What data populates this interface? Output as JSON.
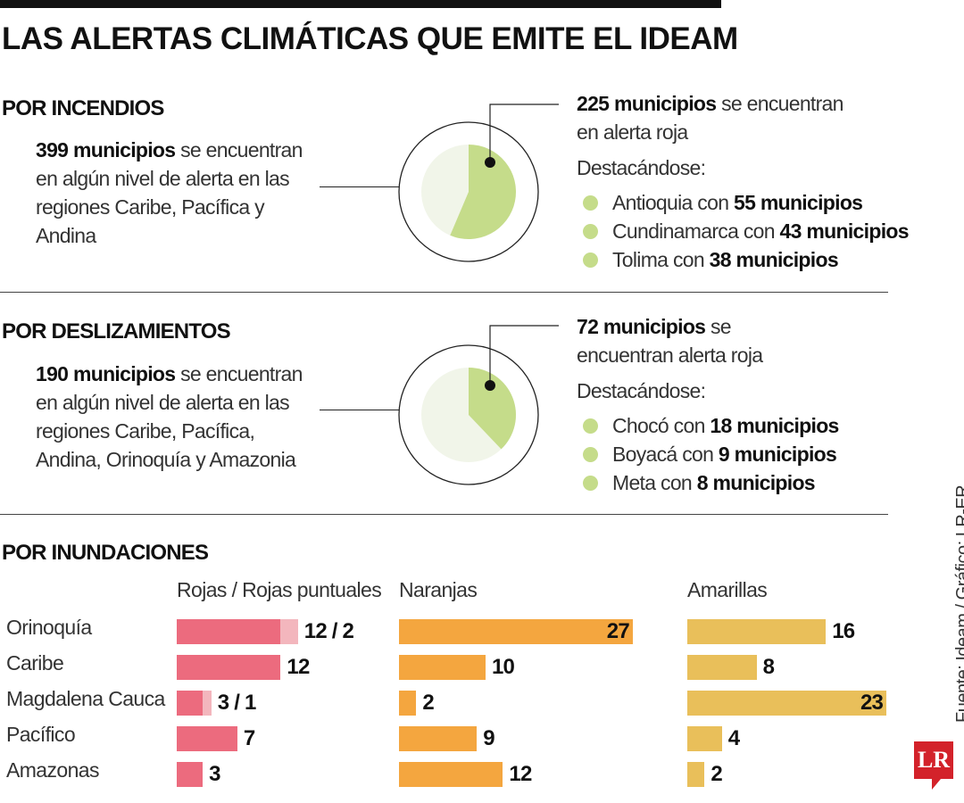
{
  "title": "LAS ALERTAS CLIMÁTICAS QUE EMITE EL IDEAM",
  "incendios": {
    "heading": "POR INCENDIOS",
    "total_bold": "399 municipios",
    "total_rest": " se encuentran en algún nivel de alerta en las regiones Caribe, Pacífica y Andina",
    "red_bold": "225 municipios",
    "red_rest": " se encuentran en alerta roja",
    "highlight_label": "Destacándose:",
    "items": [
      {
        "text": "Antioquia con ",
        "bold": "55 municipios"
      },
      {
        "text": "Cundinamarca con ",
        "bold": "43 municipios"
      },
      {
        "text": "Tolima con ",
        "bold": "38 municipios"
      }
    ]
  },
  "deslizamientos": {
    "heading": "POR DESLIZAMIENTOS",
    "total_bold": "190 municipios",
    "total_rest": " se encuentran en algún nivel de alerta en las regiones Caribe, Pacífica, Andina, Orinoquía y Amazonia",
    "red_bold": "72 municipios",
    "red_rest": " se encuentran alerta roja",
    "highlight_label": "Destacándose:",
    "items": [
      {
        "text": "Chocó con ",
        "bold": "18 municipios"
      },
      {
        "text": "Boyacá con ",
        "bold": "9 municipios"
      },
      {
        "text": "Meta con ",
        "bold": "8 municipios"
      }
    ]
  },
  "inundaciones": {
    "heading": "POR INUNDACIONES"
  },
  "source": "Fuente: Ideam / Gráfico: LR-ER",
  "logo": "LR",
  "colors": {
    "pie": "#c5dc8a",
    "pie_bg": "#f1f5e9",
    "rojas": "#ec6b7e",
    "rojas_puntuales": "#f3b6bd",
    "naranjas": "#f4a63f",
    "amarillas": "#e9bf5a"
  },
  "chart_data": [
    {
      "type": "pie",
      "values": [
        225,
        174
      ],
      "total": 399
    },
    {
      "type": "pie",
      "values": [
        72,
        118
      ],
      "total": 190
    },
    {
      "type": "bar",
      "categories": [
        "Orinoquía",
        "Caribe",
        "Magdalena Cauca",
        "Pacífico",
        "Amazonas"
      ],
      "series": [
        {
          "name": "Rojas / Rojas puntuales",
          "values": [
            12,
            12,
            3,
            7,
            3
          ],
          "secondary": [
            2,
            0,
            1,
            0,
            0
          ],
          "labels": [
            "12 / 2",
            "12",
            "3 / 1",
            "7",
            "3"
          ]
        },
        {
          "name": "Naranjas",
          "values": [
            27,
            10,
            2,
            9,
            12
          ],
          "labels": [
            "27",
            "10",
            "2",
            "9",
            "12"
          ]
        },
        {
          "name": "Amarillas",
          "values": [
            16,
            8,
            23,
            4,
            2
          ],
          "labels": [
            "16",
            "8",
            "23",
            "4",
            "2"
          ]
        }
      ]
    }
  ]
}
